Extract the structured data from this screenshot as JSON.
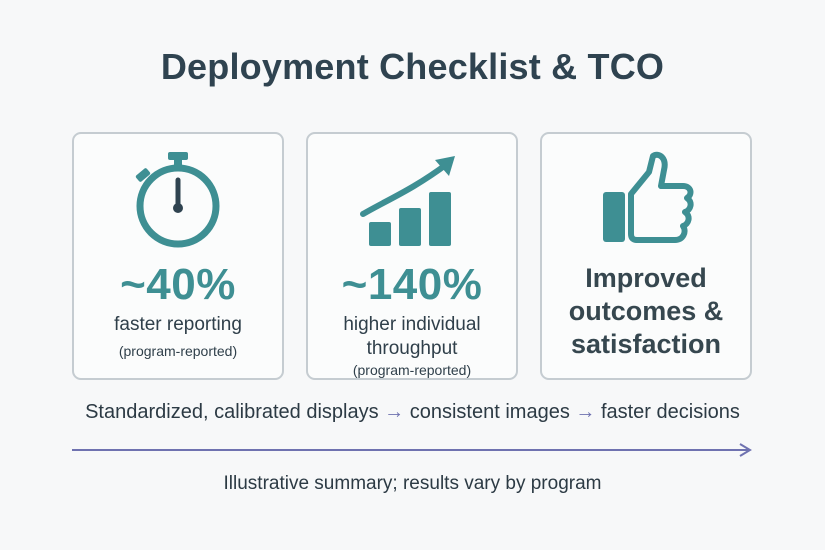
{
  "title": "Deployment Checklist & TCO",
  "cards": [
    {
      "icon": "stopwatch-icon",
      "stat": "~40%",
      "line1": "faster reporting",
      "note": "(program-reported)"
    },
    {
      "icon": "rising-bar-chart-icon",
      "stat": "~140%",
      "line1": "higher individual",
      "line2": "throughput",
      "note": "(program-reported)"
    },
    {
      "icon": "thumbs-up-icon",
      "outcome": [
        "Improved",
        "outcomes &",
        "satisfaction"
      ]
    }
  ],
  "flow": {
    "step1": "Standardized, calibrated displays",
    "arrow": "→",
    "step2": "consistent images",
    "step3": "faster decisions"
  },
  "footnote": "Illustrative summary; results vary by program",
  "colors": {
    "accent": "#3e8f93",
    "arrow": "#6f72b0",
    "card_border": "#c5ccd1"
  }
}
